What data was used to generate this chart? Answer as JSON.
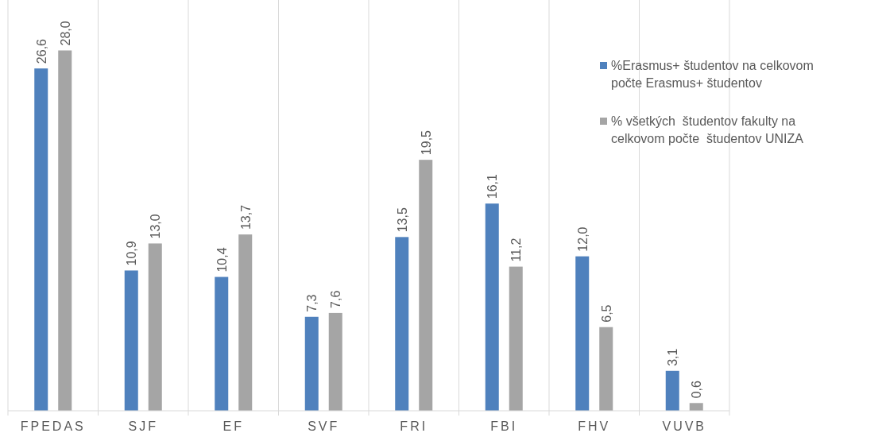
{
  "chart_data": {
    "type": "bar",
    "categories": [
      "FPEDAS",
      "SJF",
      "EF",
      "SVF",
      "FRI",
      "FBI",
      "FHV",
      "VUVB"
    ],
    "series": [
      {
        "name": "%Erasmus+ študentov na celkovom počte Erasmus+ študentov",
        "color": "#4f81bd",
        "values": [
          26.6,
          10.9,
          10.4,
          7.3,
          13.5,
          16.1,
          12.0,
          3.1
        ],
        "value_labels": [
          "26,6",
          "10,9",
          "10,4",
          "7,3",
          "13,5",
          "16,1",
          "12,0",
          "3,1"
        ]
      },
      {
        "name": "% všetkých  študentov fakulty na celkovom počte  študentov UNIZA",
        "color": "#a5a5a5",
        "values": [
          28.0,
          13.0,
          13.7,
          7.6,
          19.5,
          11.2,
          6.5,
          0.6
        ],
        "value_labels": [
          "28,0",
          "13,0",
          "13,7",
          "7,6",
          "19,5",
          "11,2",
          "6,5",
          "0,6"
        ]
      }
    ],
    "grid": "x",
    "legend": "right"
  }
}
